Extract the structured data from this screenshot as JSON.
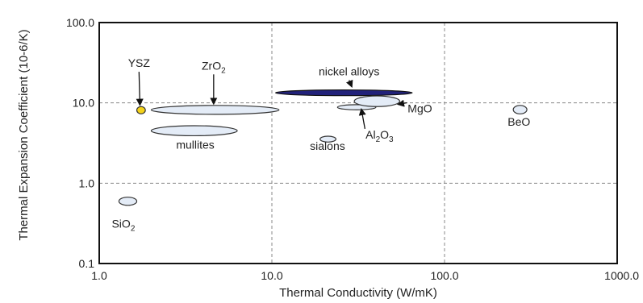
{
  "chart_data": {
    "type": "scatter",
    "title": "",
    "xlabel": "Thermal Conductivity (W/mK)",
    "ylabel": "Thermal Expansion Coefficient (10-6/K)",
    "xscale": "log",
    "yscale": "log",
    "xlim": [
      1.0,
      1000.0
    ],
    "ylim": [
      0.1,
      100.0
    ],
    "x_ticks": [
      "1.0",
      "10.0",
      "100.0",
      "1000.0"
    ],
    "y_ticks": [
      "0.1",
      "1.0",
      "10.0",
      "100.0"
    ],
    "x_tick_values": [
      1,
      10,
      100,
      1000
    ],
    "y_tick_values": [
      0.1,
      1,
      10,
      100
    ],
    "grid": "dashed at major decades",
    "colors": {
      "region_fill": "#e4ecf7",
      "region_stroke": "#333333",
      "nickel_fill": "#22227a",
      "ysz_fill": "#f4d21a",
      "frame": "#111111",
      "grid": "#888888"
    },
    "materials": [
      {
        "name": "YSZ",
        "base": "YSZ",
        "sub": "",
        "tail": "",
        "x_range": [
          1.65,
          1.85
        ],
        "y_range": [
          7.3,
          9.0
        ],
        "style": "ysz",
        "label_at": [
          1.7,
          28.0
        ],
        "arrow_to": [
          1.72,
          9.5
        ]
      },
      {
        "name": "ZrO2",
        "base": "ZrO",
        "sub": "2",
        "tail": "",
        "x_range": [
          2.0,
          11.0
        ],
        "y_range": [
          7.2,
          9.3
        ],
        "style": "region",
        "label_at": [
          4.6,
          26.0
        ],
        "arrow_to": [
          4.6,
          9.8
        ]
      },
      {
        "name": "nickel alloys",
        "base": "nickel alloys",
        "sub": "",
        "tail": "",
        "x_range": [
          10.5,
          65.0
        ],
        "y_range": [
          12.3,
          14.5
        ],
        "style": "nickel",
        "label_at": [
          28.0,
          22.0
        ],
        "arrow_to": [
          29.0,
          16.0
        ]
      },
      {
        "name": "Al2O3",
        "base": "Al",
        "sub": "2",
        "tail": "O",
        "sub2": "3",
        "x_range": [
          24.0,
          40.0
        ],
        "y_range": [
          8.2,
          9.5
        ],
        "style": "region",
        "label_at": [
          42.0,
          3.6
        ],
        "arrow_to": [
          33.0,
          8.3
        ]
      },
      {
        "name": "MgO",
        "base": "MgO",
        "sub": "",
        "tail": "",
        "x_range": [
          30.0,
          55.0
        ],
        "y_range": [
          9.0,
          12.2
        ],
        "style": "region",
        "label_at": [
          72.0,
          7.6
        ],
        "arrow_to": [
          54.0,
          9.6
        ]
      },
      {
        "name": "mullites",
        "base": "mullites",
        "sub": "",
        "tail": "",
        "x_range": [
          2.0,
          6.3
        ],
        "y_range": [
          3.9,
          5.2
        ],
        "style": "region",
        "label_at": [
          3.6,
          2.7
        ],
        "arrow_to": null
      },
      {
        "name": "sialons",
        "base": "sialons",
        "sub": "",
        "tail": "",
        "x_range": [
          19.0,
          23.5
        ],
        "y_range": [
          3.25,
          3.85
        ],
        "style": "region",
        "label_at": [
          21.0,
          2.6
        ],
        "arrow_to": null
      },
      {
        "name": "BeO",
        "base": "BeO",
        "sub": "",
        "tail": "",
        "x_range": [
          250.0,
          300.0
        ],
        "y_range": [
          7.3,
          9.3
        ],
        "style": "region",
        "label_at": [
          270.0,
          5.2
        ],
        "arrow_to": null
      },
      {
        "name": "SiO2",
        "base": "SiO",
        "sub": "2",
        "tail": "",
        "x_range": [
          1.3,
          1.65
        ],
        "y_range": [
          0.53,
          0.67
        ],
        "style": "region",
        "label_at": [
          1.38,
          0.28
        ],
        "arrow_to": null
      }
    ]
  }
}
